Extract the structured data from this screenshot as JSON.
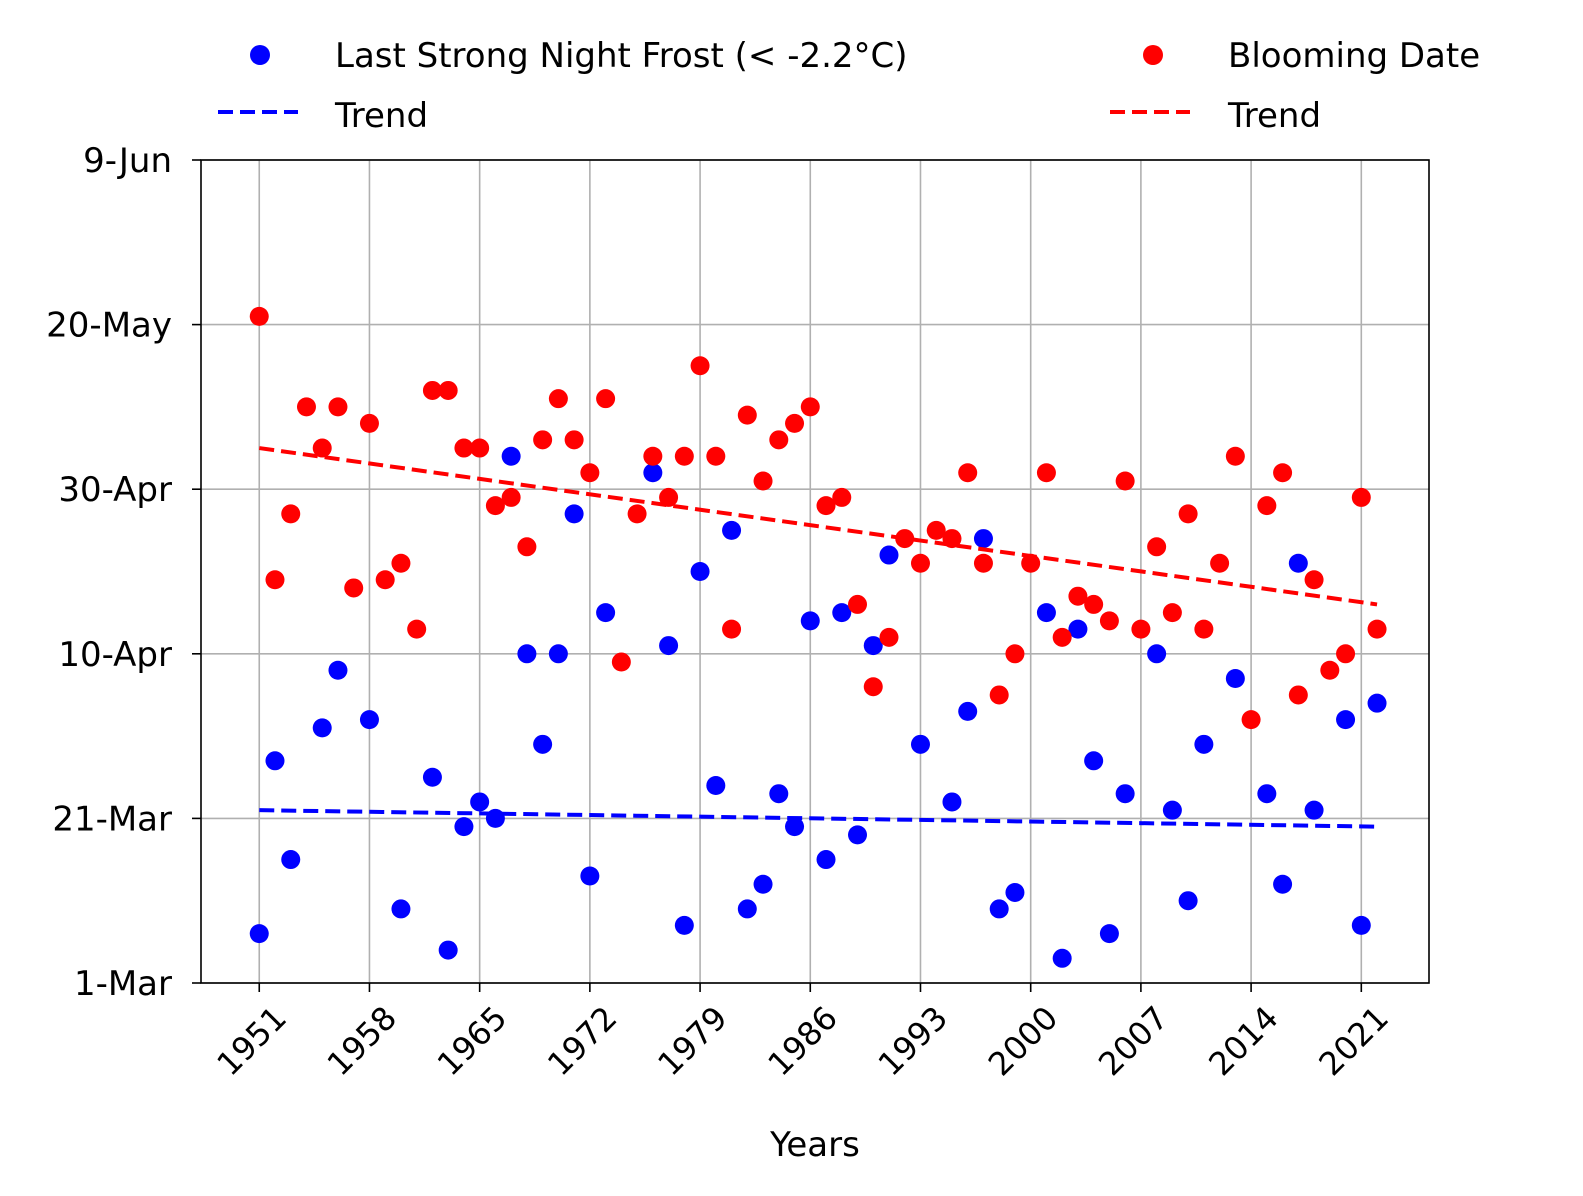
{
  "chart_data": {
    "type": "scatter",
    "xlabel": "Years",
    "ylabel": "",
    "xlim": [
      1947.3,
      2025.3
    ],
    "ylim": [
      "1-Mar",
      "9-Jun"
    ],
    "x_ticks": [
      "1951",
      "1958",
      "1965",
      "1972",
      "1979",
      "1986",
      "1993",
      "2000",
      "2007",
      "2014",
      "2021"
    ],
    "y_ticks": [
      "1-Mar",
      "21-Mar",
      "10-Apr",
      "30-Apr",
      "20-May",
      "9-Jun"
    ],
    "grid": true,
    "legend_placement": "top, above plot, 2 columns",
    "series": [
      {
        "name": "Last Strong Night Frost (< -2.2°C)",
        "color": "#0000ff",
        "kind": "scatter",
        "points": [
          [
            1951,
            "7-Mar"
          ],
          [
            1952,
            "28-Mar"
          ],
          [
            1953,
            "16-Mar"
          ],
          [
            1955,
            "1-Apr"
          ],
          [
            1956,
            "8-Apr"
          ],
          [
            1958,
            "2-Apr"
          ],
          [
            1960,
            "10-Mar"
          ],
          [
            1962,
            "26-Mar"
          ],
          [
            1963,
            "5-Mar"
          ],
          [
            1964,
            "20-Mar"
          ],
          [
            1965,
            "23-Mar"
          ],
          [
            1966,
            "21-Mar"
          ],
          [
            1967,
            "4-May"
          ],
          [
            1968,
            "10-Apr"
          ],
          [
            1969,
            "30-Mar"
          ],
          [
            1970,
            "10-Apr"
          ],
          [
            1971,
            "27-Apr"
          ],
          [
            1972,
            "14-Mar"
          ],
          [
            1973,
            "15-Apr"
          ],
          [
            1976,
            "2-May"
          ],
          [
            1977,
            "11-Apr"
          ],
          [
            1978,
            "8-Mar"
          ],
          [
            1979,
            "20-Apr"
          ],
          [
            1980,
            "25-Mar"
          ],
          [
            1981,
            "25-Apr"
          ],
          [
            1982,
            "10-Mar"
          ],
          [
            1983,
            "13-Mar"
          ],
          [
            1984,
            "24-Mar"
          ],
          [
            1985,
            "20-Mar"
          ],
          [
            1986,
            "14-Apr"
          ],
          [
            1987,
            "16-Mar"
          ],
          [
            1988,
            "15-Apr"
          ],
          [
            1989,
            "19-Mar"
          ],
          [
            1990,
            "11-Apr"
          ],
          [
            1991,
            "22-Apr"
          ],
          [
            1993,
            "30-Mar"
          ],
          [
            1995,
            "23-Mar"
          ],
          [
            1996,
            "3-Apr"
          ],
          [
            1997,
            "24-Apr"
          ],
          [
            1998,
            "10-Mar"
          ],
          [
            1999,
            "12-Mar"
          ],
          [
            2001,
            "15-Apr"
          ],
          [
            2002,
            "4-Mar"
          ],
          [
            2003,
            "13-Apr"
          ],
          [
            2004,
            "28-Mar"
          ],
          [
            2005,
            "7-Mar"
          ],
          [
            2006,
            "24-Mar"
          ],
          [
            2008,
            "10-Apr"
          ],
          [
            2009,
            "22-Mar"
          ],
          [
            2010,
            "11-Mar"
          ],
          [
            2011,
            "30-Mar"
          ],
          [
            2013,
            "7-Apr"
          ],
          [
            2015,
            "24-Mar"
          ],
          [
            2016,
            "13-Mar"
          ],
          [
            2017,
            "21-Apr"
          ],
          [
            2018,
            "22-Mar"
          ],
          [
            2020,
            "2-Apr"
          ],
          [
            2021,
            "8-Mar"
          ],
          [
            2022,
            "4-Apr"
          ]
        ]
      },
      {
        "name": "Trend",
        "color": "#0000ff",
        "kind": "dashed-line",
        "points": [
          [
            1951,
            "22-Mar"
          ],
          [
            2022,
            "20-Mar"
          ]
        ]
      },
      {
        "name": "Blooming Date",
        "color": "#ff0000",
        "kind": "scatter",
        "points": [
          [
            1951,
            "21-May"
          ],
          [
            1952,
            "19-Apr"
          ],
          [
            1953,
            "27-Apr"
          ],
          [
            1954,
            "10-May"
          ],
          [
            1955,
            "5-May"
          ],
          [
            1956,
            "10-May"
          ],
          [
            1957,
            "18-Apr"
          ],
          [
            1958,
            "8-May"
          ],
          [
            1959,
            "19-Apr"
          ],
          [
            1960,
            "21-Apr"
          ],
          [
            1961,
            "13-Apr"
          ],
          [
            1962,
            "12-May"
          ],
          [
            1963,
            "12-May"
          ],
          [
            1964,
            "5-May"
          ],
          [
            1965,
            "5-May"
          ],
          [
            1966,
            "28-Apr"
          ],
          [
            1967,
            "29-Apr"
          ],
          [
            1968,
            "23-Apr"
          ],
          [
            1969,
            "6-May"
          ],
          [
            1970,
            "11-May"
          ],
          [
            1971,
            "6-May"
          ],
          [
            1972,
            "2-May"
          ],
          [
            1973,
            "11-May"
          ],
          [
            1974,
            "9-Apr"
          ],
          [
            1975,
            "27-Apr"
          ],
          [
            1976,
            "4-May"
          ],
          [
            1977,
            "29-Apr"
          ],
          [
            1978,
            "4-May"
          ],
          [
            1979,
            "15-May"
          ],
          [
            1980,
            "4-May"
          ],
          [
            1981,
            "13-Apr"
          ],
          [
            1982,
            "9-May"
          ],
          [
            1983,
            "1-May"
          ],
          [
            1984,
            "6-May"
          ],
          [
            1985,
            "8-May"
          ],
          [
            1986,
            "10-May"
          ],
          [
            1987,
            "28-Apr"
          ],
          [
            1988,
            "29-Apr"
          ],
          [
            1989,
            "16-Apr"
          ],
          [
            1990,
            "6-Apr"
          ],
          [
            1991,
            "12-Apr"
          ],
          [
            1992,
            "24-Apr"
          ],
          [
            1993,
            "21-Apr"
          ],
          [
            1994,
            "25-Apr"
          ],
          [
            1995,
            "24-Apr"
          ],
          [
            1996,
            "2-May"
          ],
          [
            1997,
            "21-Apr"
          ],
          [
            1998,
            "5-Apr"
          ],
          [
            1999,
            "10-Apr"
          ],
          [
            2000,
            "21-Apr"
          ],
          [
            2001,
            "2-May"
          ],
          [
            2002,
            "12-Apr"
          ],
          [
            2003,
            "17-Apr"
          ],
          [
            2004,
            "16-Apr"
          ],
          [
            2005,
            "14-Apr"
          ],
          [
            2006,
            "1-May"
          ],
          [
            2007,
            "13-Apr"
          ],
          [
            2008,
            "23-Apr"
          ],
          [
            2009,
            "15-Apr"
          ],
          [
            2010,
            "27-Apr"
          ],
          [
            2011,
            "13-Apr"
          ],
          [
            2012,
            "21-Apr"
          ],
          [
            2013,
            "4-May"
          ],
          [
            2014,
            "2-Apr"
          ],
          [
            2015,
            "28-Apr"
          ],
          [
            2016,
            "2-May"
          ],
          [
            2017,
            "5-Apr"
          ],
          [
            2018,
            "19-Apr"
          ],
          [
            2019,
            "8-Apr"
          ],
          [
            2020,
            "10-Apr"
          ],
          [
            2021,
            "29-Apr"
          ],
          [
            2022,
            "13-Apr"
          ]
        ]
      },
      {
        "name": "Trend",
        "color": "#ff0000",
        "kind": "dashed-line",
        "points": [
          [
            1951,
            "5-May"
          ],
          [
            2022,
            "16-Apr"
          ]
        ]
      }
    ]
  }
}
